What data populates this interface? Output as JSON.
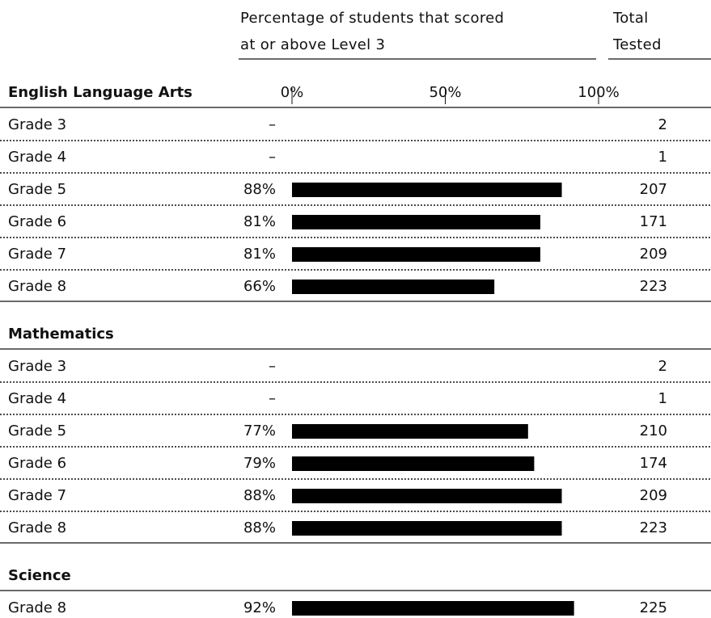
{
  "header": {
    "percent_heading": "Percentage of students that scored at or above Level 3",
    "total_heading": "Total Tested"
  },
  "axis": {
    "lim": [
      0,
      100
    ],
    "ticks": [
      {
        "value": 0,
        "label": "0%"
      },
      {
        "value": 50,
        "label": "50%"
      },
      {
        "value": 100,
        "label": "100%"
      }
    ]
  },
  "sections": [
    {
      "title": "English Language Arts",
      "rows": [
        {
          "grade": "Grade 3",
          "percent": null,
          "percent_label": "–",
          "total": 2
        },
        {
          "grade": "Grade 4",
          "percent": null,
          "percent_label": "–",
          "total": 1
        },
        {
          "grade": "Grade 5",
          "percent": 88,
          "percent_label": "88%",
          "total": 207
        },
        {
          "grade": "Grade 6",
          "percent": 81,
          "percent_label": "81%",
          "total": 171
        },
        {
          "grade": "Grade 7",
          "percent": 81,
          "percent_label": "81%",
          "total": 209
        },
        {
          "grade": "Grade 8",
          "percent": 66,
          "percent_label": "66%",
          "total": 223
        }
      ]
    },
    {
      "title": "Mathematics",
      "rows": [
        {
          "grade": "Grade 3",
          "percent": null,
          "percent_label": "–",
          "total": 2
        },
        {
          "grade": "Grade 4",
          "percent": null,
          "percent_label": "–",
          "total": 1
        },
        {
          "grade": "Grade 5",
          "percent": 77,
          "percent_label": "77%",
          "total": 210
        },
        {
          "grade": "Grade 6",
          "percent": 79,
          "percent_label": "79%",
          "total": 174
        },
        {
          "grade": "Grade 7",
          "percent": 88,
          "percent_label": "88%",
          "total": 209
        },
        {
          "grade": "Grade 8",
          "percent": 88,
          "percent_label": "88%",
          "total": 223
        }
      ]
    },
    {
      "title": "Science",
      "rows": [
        {
          "grade": "Grade 8",
          "percent": 92,
          "percent_label": "92%",
          "total": 225
        }
      ]
    }
  ]
}
